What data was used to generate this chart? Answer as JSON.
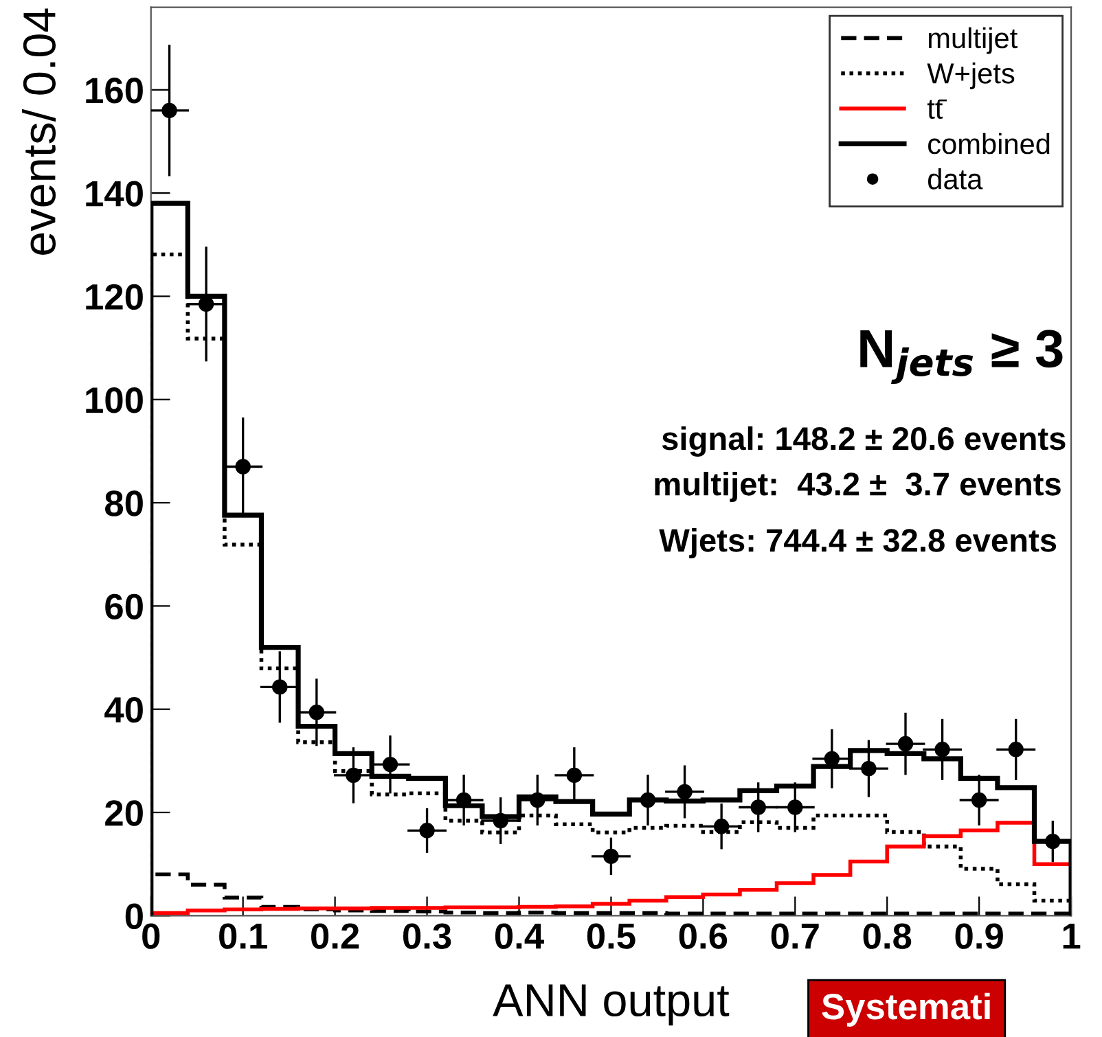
{
  "chart_data": {
    "type": "histogram",
    "xlabel": "ANN output",
    "ylabel": "events/ 0.04",
    "bins": [
      0,
      0.04,
      0.08,
      0.12,
      0.16,
      0.2,
      0.24,
      0.28,
      0.32,
      0.36,
      0.4,
      0.44,
      0.48,
      0.52,
      0.56,
      0.6,
      0.64,
      0.68,
      0.72,
      0.76,
      0.8,
      0.84,
      0.88,
      0.92,
      0.96,
      1
    ],
    "series": [
      {
        "name": "multijet",
        "type": "histogram",
        "color": "#000000",
        "line_style": "dashed",
        "values": [
          8.0,
          6.0,
          3.5,
          1.7,
          1.2,
          1.0,
          0.9,
          0.8,
          0.6,
          0.5,
          0.6,
          0.5,
          0.5,
          0.5,
          0.4,
          0.4,
          0.4,
          0.4,
          0.4,
          0.4,
          0.4,
          0.4,
          0.4,
          0.4,
          0.4
        ]
      },
      {
        "name": "W+jets",
        "type": "histogram",
        "color": "#000000",
        "line_style": "dotted",
        "values": [
          128.1,
          111.8,
          71.9,
          47.9,
          33.6,
          28.0,
          23.5,
          23.7,
          18.4,
          16.1,
          19.4,
          17.7,
          16.1,
          17.0,
          17.4,
          16.2,
          18.1,
          17.0,
          19.4,
          19.4,
          16.2,
          13.4,
          9.1,
          6.1,
          2.9
        ]
      },
      {
        "name": "tt̄",
        "type": "histogram",
        "color": "#ff0000",
        "line_style": "solid",
        "values": [
          0.5,
          1.0,
          1.2,
          1.3,
          1.4,
          1.4,
          1.5,
          1.5,
          1.6,
          1.6,
          1.7,
          1.8,
          2.3,
          2.9,
          3.6,
          4.1,
          5.0,
          6.3,
          7.9,
          10.5,
          13.4,
          15.4,
          16.5,
          18.0,
          10.0
        ]
      },
      {
        "name": "combined",
        "type": "histogram",
        "color": "#000000",
        "line_style": "solid",
        "values": [
          138,
          120,
          77.6,
          52,
          36.7,
          31.4,
          27,
          26.6,
          21.3,
          19.2,
          23,
          22.1,
          19.7,
          22.4,
          22.2,
          22.4,
          24.2,
          25.1,
          28.9,
          32,
          31.4,
          30.4,
          26.6,
          24.8,
          14.4
        ]
      },
      {
        "name": "data",
        "type": "scatter",
        "color": "#000000",
        "marker": "circle",
        "x": [
          0.02,
          0.06,
          0.1,
          0.14,
          0.18,
          0.22,
          0.26,
          0.3,
          0.34,
          0.38,
          0.42,
          0.46,
          0.5,
          0.54,
          0.58,
          0.62,
          0.66,
          0.7,
          0.74,
          0.78,
          0.82,
          0.86,
          0.9,
          0.94,
          0.98
        ],
        "values": [
          156,
          118.5,
          87,
          44.3,
          39.4,
          27.2,
          29.3,
          16.5,
          22.4,
          18.4,
          22.4,
          27.2,
          11.5,
          22.4,
          24,
          17.3,
          21,
          21,
          30.4,
          28.5,
          33.3,
          32.2,
          22.4,
          32.2,
          14.4
        ],
        "errors": [
          12.5,
          10.9,
          9.3,
          6.7,
          6.3,
          5.2,
          5.4,
          4.1,
          4.7,
          4.3,
          4.7,
          5.2,
          3.4,
          4.7,
          4.9,
          4.2,
          4.6,
          4.6,
          5.5,
          5.3,
          5.8,
          5.7,
          4.7,
          5.7,
          3.8
        ],
        "xerrors": [
          0.02,
          0.02,
          0.02,
          0.02,
          0.02,
          0.02,
          0.02,
          0.02,
          0.02,
          0.02,
          0.02,
          0.02,
          0.02,
          0.02,
          0.02,
          0.02,
          0.02,
          0.02,
          0.02,
          0.02,
          0.02,
          0.02,
          0.02,
          0.02,
          0.02
        ]
      }
    ],
    "xlim": [
      0,
      1
    ],
    "ylim": [
      0,
      176
    ],
    "xticks": [
      0,
      0.1,
      0.2,
      0.3,
      0.4,
      0.5,
      0.6,
      0.7,
      0.8,
      0.9,
      {
        "value": 1,
        "label": "1"
      }
    ],
    "yticks": [
      0,
      20,
      40,
      60,
      80,
      100,
      120,
      140,
      160
    ],
    "grid": false,
    "legend": "top right",
    "annotations": [
      "N$_{jets}$ ≥ 3",
      "signal: 148.2 ± 20.6 events",
      "multijet:  43.2 ±  3.7 events",
      "Wjets: 744.4 ± 32.8 events",
      "Systemati"
    ]
  }
}
